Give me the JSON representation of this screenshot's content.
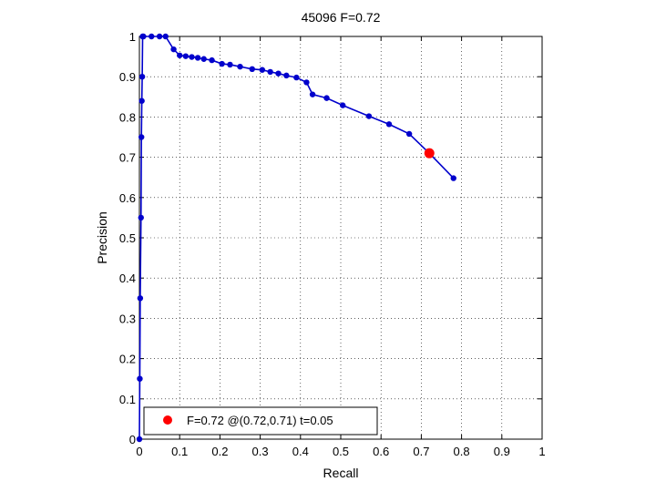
{
  "chart_data": {
    "type": "line",
    "title": "45096 F=0.72",
    "xlabel": "Recall",
    "ylabel": "Precision",
    "xlim": [
      0,
      1
    ],
    "ylim": [
      0,
      1
    ],
    "grid": true,
    "legend_position": "bottom-left",
    "x_ticks": [
      "0",
      "0.1",
      "0.2",
      "0.3",
      "0.4",
      "0.5",
      "0.6",
      "0.7",
      "0.8",
      "0.9",
      "1"
    ],
    "y_ticks": [
      "0",
      "0.1",
      "0.2",
      "0.3",
      "0.4",
      "0.5",
      "0.6",
      "0.7",
      "0.8",
      "0.9",
      "1"
    ],
    "series": [
      {
        "color": "#0000cc",
        "marker": "circle",
        "x": [
          0,
          0.001,
          0.002,
          0.004,
          0.005,
          0.006,
          0.007,
          0.008,
          0.01,
          0.03,
          0.05,
          0.065,
          0.085,
          0.1,
          0.115,
          0.13,
          0.145,
          0.16,
          0.18,
          0.205,
          0.225,
          0.25,
          0.28,
          0.305,
          0.325,
          0.345,
          0.365,
          0.39,
          0.415,
          0.43,
          0.465,
          0.505,
          0.57,
          0.62,
          0.67,
          0.72,
          0.78
        ],
        "y": [
          0,
          0.15,
          0.35,
          0.55,
          0.75,
          0.84,
          0.9,
          1.0,
          1.0,
          1.0,
          1.0,
          1.0,
          0.968,
          0.953,
          0.951,
          0.949,
          0.947,
          0.944,
          0.941,
          0.932,
          0.93,
          0.925,
          0.919,
          0.917,
          0.912,
          0.908,
          0.903,
          0.898,
          0.886,
          0.856,
          0.847,
          0.829,
          0.802,
          0.782,
          0.758,
          0.71,
          0.648
        ]
      }
    ],
    "best_point": {
      "color": "#ff0000",
      "x": 0.72,
      "y": 0.71,
      "legend": "F=0.72 @(0.72,0.71) t=0.05"
    }
  }
}
